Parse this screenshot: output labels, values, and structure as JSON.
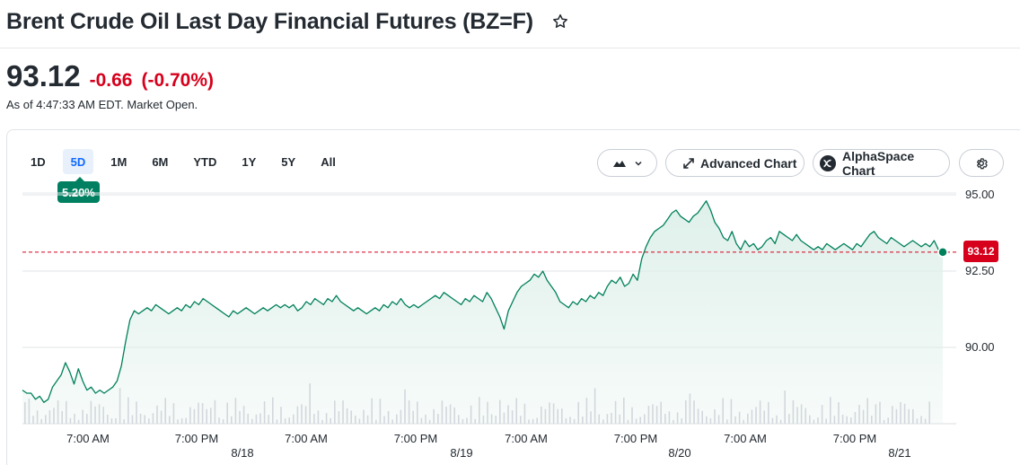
{
  "header": {
    "title": "Brent Crude Oil Last Day Financial Futures (BZ=F)",
    "star_icon": "star-outline-icon"
  },
  "quote": {
    "price": "93.12",
    "change": "-0.66",
    "change_percent": "(-0.70%)",
    "as_of": "As of 4:47:33 AM EDT. Market Open.",
    "down_color": "#d6001c"
  },
  "toolbar": {
    "ranges": [
      "1D",
      "5D",
      "1M",
      "6M",
      "YTD",
      "1Y",
      "5Y",
      "All"
    ],
    "active_range": "5D",
    "active_range_return": "5.20%",
    "chart_type_icon": "mountain-chart-icon",
    "advanced_chart_label": "Advanced Chart",
    "alphaspace_chart_label": "AlphaSpace Chart",
    "settings_icon": "gear-icon"
  },
  "chart_data": {
    "type": "area",
    "ylim": [
      87.5,
      95.5
    ],
    "y_ticks": [
      90.0,
      92.5,
      95.0
    ],
    "y_tick_labels": [
      "90.00",
      "92.50",
      "95.00"
    ],
    "x_tick_labels": [
      "7:00 AM",
      "7:00 PM",
      "7:00 AM",
      "7:00 PM",
      "7:00 AM",
      "7:00 PM",
      "7:00 AM",
      "7:00 PM"
    ],
    "date_labels": [
      "8/18",
      "8/19",
      "8/20",
      "8/21"
    ],
    "current_price": 93.12,
    "current_price_label": "93.12",
    "line_color": "#00805a",
    "fill_color": "#dff0ea",
    "grid": true,
    "series": [
      {
        "values": [
          88.6,
          88.5,
          88.5,
          88.3,
          88.4,
          88.2,
          88.3,
          88.7,
          88.9,
          89.1,
          89.5,
          89.2,
          88.8,
          89.3,
          88.9,
          88.6,
          88.7,
          88.5,
          88.6,
          88.5,
          88.6,
          88.7,
          88.9,
          89.4,
          90.2,
          90.9,
          91.2,
          91.1,
          91.2,
          91.3,
          91.2,
          91.4,
          91.3,
          91.2,
          91.1,
          91.2,
          91.3,
          91.2,
          91.4,
          91.3,
          91.5,
          91.4,
          91.6,
          91.5,
          91.4,
          91.3,
          91.2,
          91.1,
          91.0,
          91.2,
          91.1,
          91.2,
          91.3,
          91.2,
          91.1,
          91.2,
          91.3,
          91.2,
          91.3,
          91.4,
          91.3,
          91.4,
          91.3,
          91.4,
          91.2,
          91.3,
          91.5,
          91.4,
          91.6,
          91.5,
          91.4,
          91.6,
          91.5,
          91.7,
          91.5,
          91.4,
          91.3,
          91.2,
          91.3,
          91.2,
          91.1,
          91.2,
          91.3,
          91.2,
          91.4,
          91.3,
          91.5,
          91.4,
          91.6,
          91.4,
          91.3,
          91.4,
          91.3,
          91.4,
          91.5,
          91.6,
          91.7,
          91.6,
          91.8,
          91.7,
          91.6,
          91.5,
          91.4,
          91.6,
          91.5,
          91.7,
          91.6,
          91.5,
          91.8,
          91.6,
          91.3,
          91.0,
          90.6,
          91.2,
          91.5,
          91.8,
          92.0,
          92.1,
          92.2,
          92.4,
          92.3,
          92.5,
          92.2,
          92.0,
          91.8,
          91.5,
          91.4,
          91.3,
          91.5,
          91.4,
          91.6,
          91.5,
          91.7,
          91.6,
          91.8,
          91.7,
          92.0,
          92.2,
          92.1,
          92.3,
          92.0,
          92.1,
          92.4,
          92.2,
          92.9,
          93.3,
          93.6,
          93.8,
          93.9,
          94.0,
          94.2,
          94.4,
          94.5,
          94.3,
          94.2,
          94.1,
          94.3,
          94.4,
          94.6,
          94.8,
          94.5,
          94.1,
          93.9,
          93.6,
          93.5,
          93.8,
          93.4,
          93.2,
          93.5,
          93.3,
          93.4,
          93.2,
          93.3,
          93.5,
          93.6,
          93.4,
          93.8,
          93.7,
          93.6,
          93.5,
          93.7,
          93.5,
          93.4,
          93.3,
          93.2,
          93.3,
          93.2,
          93.4,
          93.3,
          93.2,
          93.3,
          93.4,
          93.3,
          93.2,
          93.4,
          93.3,
          93.5,
          93.7,
          93.8,
          93.6,
          93.5,
          93.4,
          93.6,
          93.5,
          93.4,
          93.3,
          93.4,
          93.5,
          93.4,
          93.3,
          93.4,
          93.3,
          93.5,
          93.2,
          93.12
        ]
      }
    ]
  }
}
